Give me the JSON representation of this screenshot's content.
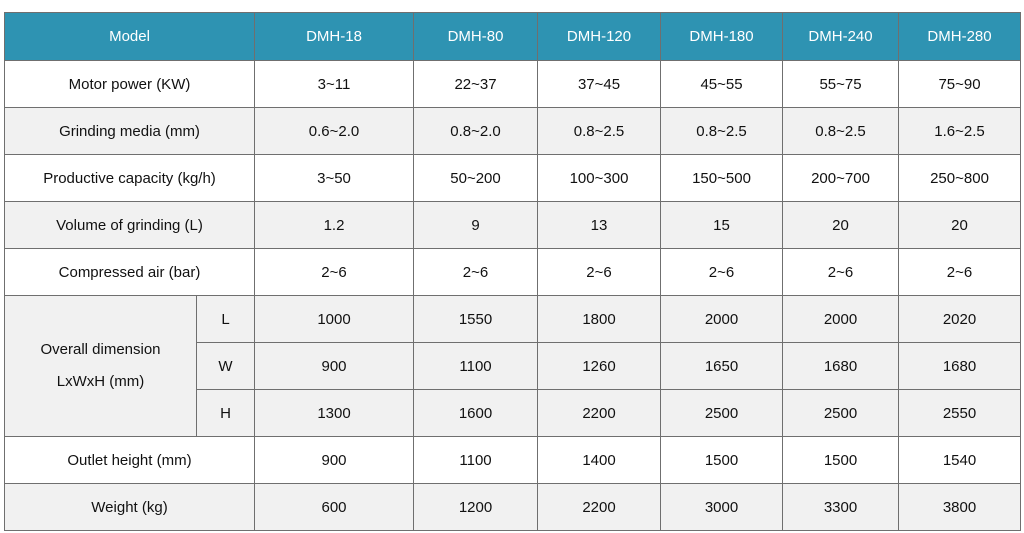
{
  "header": {
    "label": "Model",
    "models": [
      "DMH-18",
      "DMH-80",
      "DMH-120",
      "DMH-180",
      "DMH-240",
      "DMH-280"
    ]
  },
  "colors": {
    "header_bg": "#2e93b2",
    "alt_row_bg": "#f1f1f1"
  },
  "rows": [
    {
      "label": "Motor power (KW)",
      "values": [
        "3~11",
        "22~37",
        "37~45",
        "45~55",
        "55~75",
        "75~90"
      ]
    },
    {
      "label": "Grinding media (mm)",
      "values": [
        "0.6~2.0",
        "0.8~2.0",
        "0.8~2.5",
        "0.8~2.5",
        "0.8~2.5",
        "1.6~2.5"
      ]
    },
    {
      "label": "Productive capacity (kg/h)",
      "values": [
        "3~50",
        "50~200",
        "100~300",
        "150~500",
        "200~700",
        "250~800"
      ]
    },
    {
      "label": "Volume of grinding (L)",
      "values": [
        "1.2",
        "9",
        "13",
        "15",
        "20",
        "20"
      ]
    },
    {
      "label": "Compressed air (bar)",
      "values": [
        "2~6",
        "2~6",
        "2~6",
        "2~6",
        "2~6",
        "2~6"
      ]
    }
  ],
  "dimension": {
    "label_line1": "Overall dimension",
    "label_line2": "LxWxH (mm)",
    "sub": [
      {
        "label": "L",
        "values": [
          "1000",
          "1550",
          "1800",
          "2000",
          "2000",
          "2020"
        ]
      },
      {
        "label": "W",
        "values": [
          "900",
          "1100",
          "1260",
          "1650",
          "1680",
          "1680"
        ]
      },
      {
        "label": "H",
        "values": [
          "1300",
          "1600",
          "2200",
          "2500",
          "2500",
          "2550"
        ]
      }
    ]
  },
  "rows2": [
    {
      "label": "Outlet height (mm)",
      "values": [
        "900",
        "1100",
        "1400",
        "1500",
        "1500",
        "1540"
      ]
    },
    {
      "label": "Weight (kg)",
      "values": [
        "600",
        "1200",
        "2200",
        "3000",
        "3300",
        "3800"
      ]
    }
  ]
}
